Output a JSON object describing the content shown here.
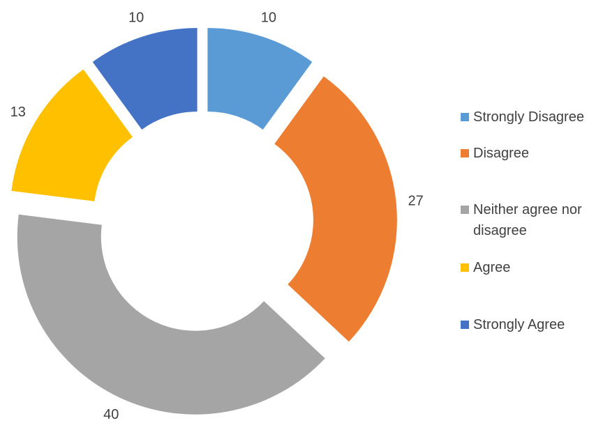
{
  "chart_data": {
    "type": "donut",
    "categories": [
      "Strongly Disagree",
      "Disagree",
      "Neither agree nor disagree",
      "Agree",
      "Strongly Agree"
    ],
    "values": [
      10,
      27,
      40,
      13,
      10
    ],
    "colors": [
      "#5b9bd5",
      "#ed7d31",
      "#a5a5a5",
      "#ffc000",
      "#4472c4"
    ],
    "legend": "right"
  }
}
